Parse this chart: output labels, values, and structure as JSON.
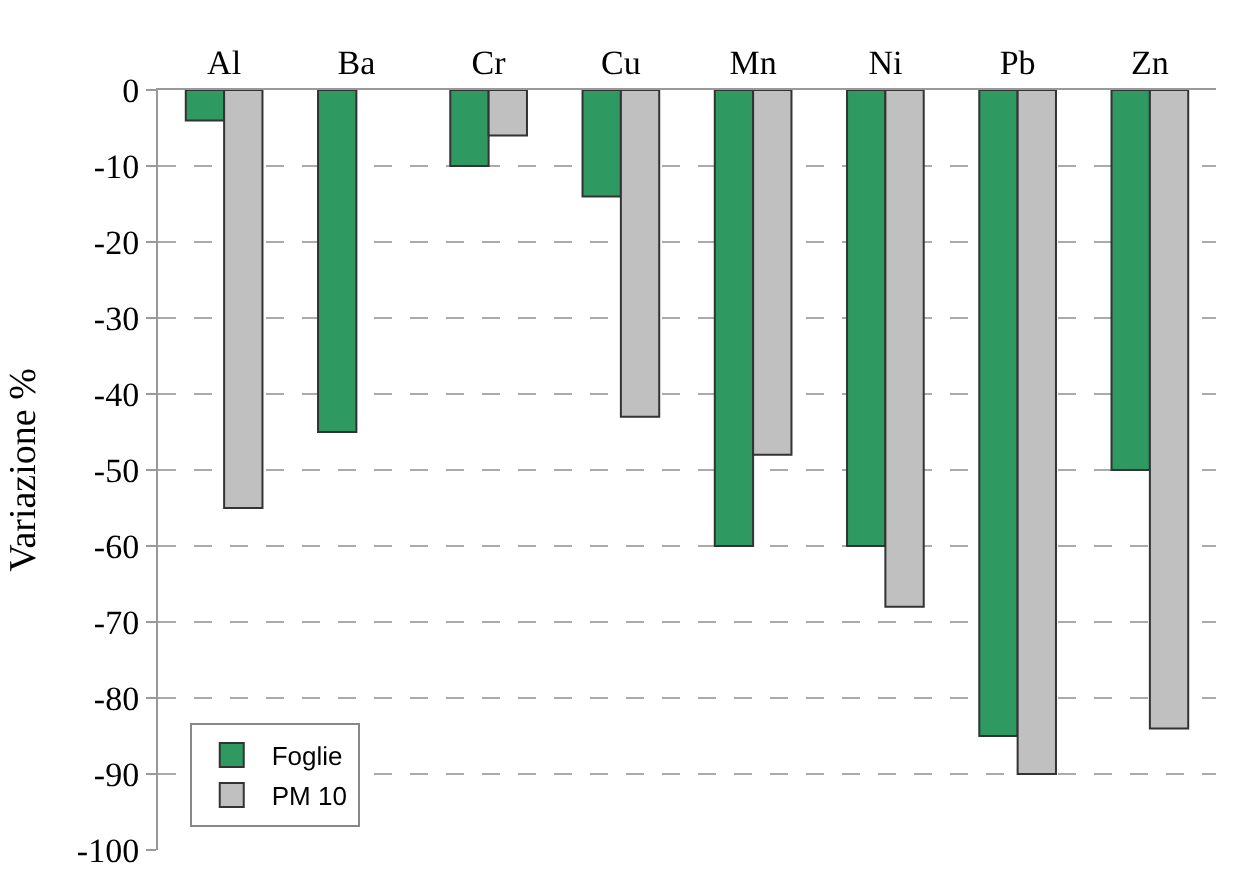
{
  "chart_data": {
    "type": "bar",
    "ylabel": "Variazione %",
    "categories": [
      "Al",
      "Ba",
      "Cr",
      "Cu",
      "Mn",
      "Ni",
      "Pb",
      "Zn"
    ],
    "series": [
      {
        "name": "Foglie",
        "color": "#2e9a62",
        "values": [
          -4,
          -45,
          -10,
          -14,
          -60,
          -60,
          -85,
          -50
        ]
      },
      {
        "name": "PM 10",
        "color": "#c0c0c0",
        "values": [
          -55,
          null,
          -6,
          -43,
          -48,
          -68,
          -90,
          -84
        ]
      }
    ],
    "ylim": [
      -100,
      0
    ],
    "yticks": [
      0,
      -10,
      -20,
      -30,
      -40,
      -50,
      -60,
      -70,
      -80,
      -90,
      -100
    ],
    "grid": "y",
    "legend": "bottom left"
  }
}
